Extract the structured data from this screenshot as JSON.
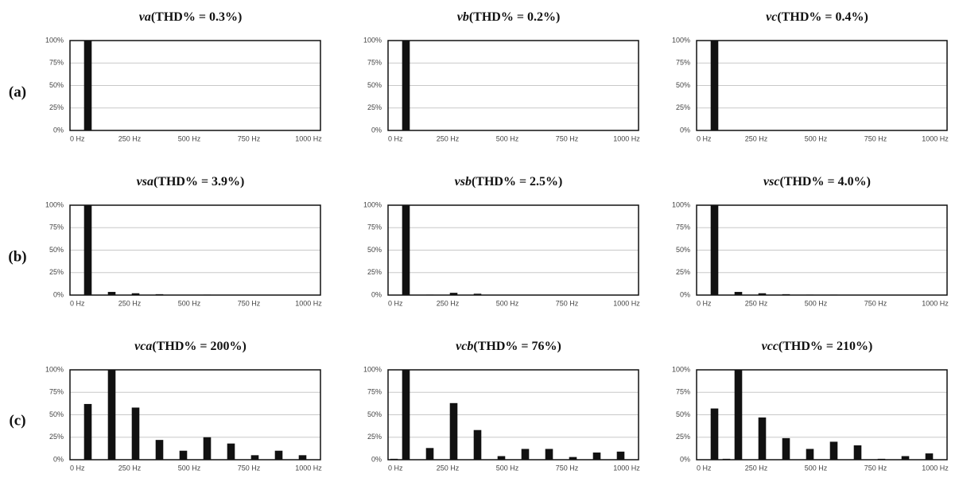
{
  "row_labels": [
    "(a)",
    "(b)",
    "(c)"
  ],
  "chart_data": [
    {
      "type": "bar",
      "symbol": "va",
      "title": "(THD% = 0.3%)",
      "color": "#111111",
      "grid": true,
      "categories": [
        "0 Hz",
        null,
        null,
        null,
        null,
        "250 Hz",
        null,
        null,
        null,
        null,
        "500 Hz",
        null,
        null,
        null,
        null,
        "750 Hz",
        null,
        null,
        null,
        null,
        "1000 Hz"
      ],
      "values": [
        0,
        100,
        0,
        0.3,
        0,
        0,
        0,
        0,
        0,
        0,
        0,
        0,
        0,
        0,
        0,
        0,
        0,
        0,
        0,
        0,
        0
      ],
      "ylim": [
        0,
        100
      ],
      "yticks": [
        {
          "value": 0,
          "label": "0%"
        },
        {
          "value": 25,
          "label": "25%"
        },
        {
          "value": 50,
          "label": "50%"
        },
        {
          "value": 75,
          "label": "75%"
        },
        {
          "value": 100,
          "label": "100%"
        }
      ]
    },
    {
      "type": "bar",
      "symbol": "vb",
      "title": "(THD% = 0.2%)",
      "color": "#111111",
      "grid": true,
      "categories": [
        "0 Hz",
        null,
        null,
        null,
        null,
        "250 Hz",
        null,
        null,
        null,
        null,
        "500 Hz",
        null,
        null,
        null,
        null,
        "750 Hz",
        null,
        null,
        null,
        null,
        "1000 Hz"
      ],
      "values": [
        0,
        100,
        0,
        0.1,
        0,
        0,
        0,
        0,
        0,
        0,
        0,
        0,
        0,
        0,
        0,
        0,
        0,
        0,
        0,
        0,
        0
      ],
      "ylim": [
        0,
        100
      ],
      "yticks": [
        {
          "value": 0,
          "label": "0%"
        },
        {
          "value": 25,
          "label": "25%"
        },
        {
          "value": 50,
          "label": "50%"
        },
        {
          "value": 75,
          "label": "75%"
        },
        {
          "value": 100,
          "label": "100%"
        }
      ]
    },
    {
      "type": "bar",
      "symbol": "vc",
      "title": "(THD% = 0.4%)",
      "color": "#111111",
      "grid": true,
      "categories": [
        "0 Hz",
        null,
        null,
        null,
        null,
        "250 Hz",
        null,
        null,
        null,
        null,
        "500 Hz",
        null,
        null,
        null,
        null,
        "750 Hz",
        null,
        null,
        null,
        null,
        "1000 Hz"
      ],
      "values": [
        0,
        100,
        0,
        0.2,
        0,
        0,
        0,
        0,
        0,
        0,
        0,
        0,
        0,
        0,
        0,
        0,
        0,
        0,
        0,
        0,
        0
      ],
      "ylim": [
        0,
        100
      ],
      "yticks": [
        {
          "value": 0,
          "label": "0%"
        },
        {
          "value": 25,
          "label": "25%"
        },
        {
          "value": 50,
          "label": "50%"
        },
        {
          "value": 75,
          "label": "75%"
        },
        {
          "value": 100,
          "label": "100%"
        }
      ]
    },
    {
      "type": "bar",
      "symbol": "vsa",
      "title": "(THD% = 3.9%)",
      "color": "#111111",
      "grid": true,
      "categories": [
        "0 Hz",
        null,
        null,
        null,
        null,
        "250 Hz",
        null,
        null,
        null,
        null,
        "500 Hz",
        null,
        null,
        null,
        null,
        "750 Hz",
        null,
        null,
        null,
        null,
        "1000 Hz"
      ],
      "values": [
        0,
        100,
        0,
        3.5,
        0,
        2,
        0,
        1,
        0,
        0.3,
        0,
        0.5,
        0,
        0.3,
        0,
        0.1,
        0,
        0.1,
        0,
        0.1,
        0
      ],
      "ylim": [
        0,
        100
      ],
      "yticks": [
        {
          "value": 0,
          "label": "0%"
        },
        {
          "value": 25,
          "label": "25%"
        },
        {
          "value": 50,
          "label": "50%"
        },
        {
          "value": 75,
          "label": "75%"
        },
        {
          "value": 100,
          "label": "100%"
        }
      ]
    },
    {
      "type": "bar",
      "symbol": "vsb",
      "title": "(THD% = 2.5%)",
      "color": "#111111",
      "grid": true,
      "categories": [
        "0 Hz",
        null,
        null,
        null,
        null,
        "250 Hz",
        null,
        null,
        null,
        null,
        "500 Hz",
        null,
        null,
        null,
        null,
        "750 Hz",
        null,
        null,
        null,
        null,
        "1000 Hz"
      ],
      "values": [
        0,
        100,
        0,
        0.5,
        0,
        2.5,
        0,
        1.5,
        0,
        0.3,
        0,
        0.3,
        0,
        0.2,
        0,
        0.1,
        0,
        0.1,
        0,
        0.1,
        0
      ],
      "ylim": [
        0,
        100
      ],
      "yticks": [
        {
          "value": 0,
          "label": "0%"
        },
        {
          "value": 25,
          "label": "25%"
        },
        {
          "value": 50,
          "label": "50%"
        },
        {
          "value": 75,
          "label": "75%"
        },
        {
          "value": 100,
          "label": "100%"
        }
      ]
    },
    {
      "type": "bar",
      "symbol": "vsc",
      "title": "(THD% = 4.0%)",
      "color": "#111111",
      "grid": true,
      "categories": [
        "0 Hz",
        null,
        null,
        null,
        null,
        "250 Hz",
        null,
        null,
        null,
        null,
        "500 Hz",
        null,
        null,
        null,
        null,
        "750 Hz",
        null,
        null,
        null,
        null,
        "1000 Hz"
      ],
      "values": [
        0,
        100,
        0,
        3.5,
        0,
        2,
        0,
        1,
        0,
        0.5,
        0,
        0.5,
        0,
        0.3,
        0,
        0.2,
        0,
        0.1,
        0,
        0.1,
        0
      ],
      "ylim": [
        0,
        100
      ],
      "yticks": [
        {
          "value": 0,
          "label": "0%"
        },
        {
          "value": 25,
          "label": "25%"
        },
        {
          "value": 50,
          "label": "50%"
        },
        {
          "value": 75,
          "label": "75%"
        },
        {
          "value": 100,
          "label": "100%"
        }
      ]
    },
    {
      "type": "bar",
      "symbol": "vca",
      "title": "(THD% = 200%)",
      "color": "#111111",
      "grid": true,
      "categories": [
        "0 Hz",
        null,
        null,
        null,
        null,
        "250 Hz",
        null,
        null,
        null,
        null,
        "500 Hz",
        null,
        null,
        null,
        null,
        "750 Hz",
        null,
        null,
        null,
        null,
        "1000 Hz"
      ],
      "values": [
        0,
        62,
        0,
        100,
        0,
        58,
        0,
        22,
        0,
        10,
        0,
        25,
        0,
        18,
        0,
        5,
        0,
        10,
        0,
        5,
        0
      ],
      "ylim": [
        0,
        100
      ],
      "yticks": [
        {
          "value": 0,
          "label": "0%"
        },
        {
          "value": 25,
          "label": "25%"
        },
        {
          "value": 50,
          "label": "50%"
        },
        {
          "value": 75,
          "label": "75%"
        },
        {
          "value": 100,
          "label": "100%"
        }
      ]
    },
    {
      "type": "bar",
      "symbol": "vcb",
      "title": "(THD% = 76%)",
      "color": "#111111",
      "grid": true,
      "categories": [
        "0 Hz",
        null,
        null,
        null,
        null,
        "250 Hz",
        null,
        null,
        null,
        null,
        "500 Hz",
        null,
        null,
        null,
        null,
        "750 Hz",
        null,
        null,
        null,
        null,
        "1000 Hz"
      ],
      "values": [
        1,
        100,
        0,
        13,
        0,
        63,
        0,
        33,
        0,
        4,
        0,
        12,
        0,
        12,
        0,
        3,
        0,
        8,
        0,
        9,
        0
      ],
      "ylim": [
        0,
        100
      ],
      "yticks": [
        {
          "value": 0,
          "label": "0%"
        },
        {
          "value": 25,
          "label": "25%"
        },
        {
          "value": 50,
          "label": "50%"
        },
        {
          "value": 75,
          "label": "75%"
        },
        {
          "value": 100,
          "label": "100%"
        }
      ]
    },
    {
      "type": "bar",
      "symbol": "vcc",
      "title": "(THD% = 210%)",
      "color": "#111111",
      "grid": true,
      "categories": [
        "0 Hz",
        null,
        null,
        null,
        null,
        "250 Hz",
        null,
        null,
        null,
        null,
        "500 Hz",
        null,
        null,
        null,
        null,
        "750 Hz",
        null,
        null,
        null,
        null,
        "1000 Hz"
      ],
      "values": [
        0,
        57,
        1,
        100,
        0,
        47,
        0,
        24,
        0,
        12,
        0,
        20,
        0,
        16,
        0,
        1,
        0,
        4,
        0,
        7,
        0
      ],
      "ylim": [
        0,
        100
      ],
      "yticks": [
        {
          "value": 0,
          "label": "0%"
        },
        {
          "value": 25,
          "label": "25%"
        },
        {
          "value": 50,
          "label": "50%"
        },
        {
          "value": 75,
          "label": "75%"
        },
        {
          "value": 100,
          "label": "100%"
        }
      ]
    }
  ]
}
